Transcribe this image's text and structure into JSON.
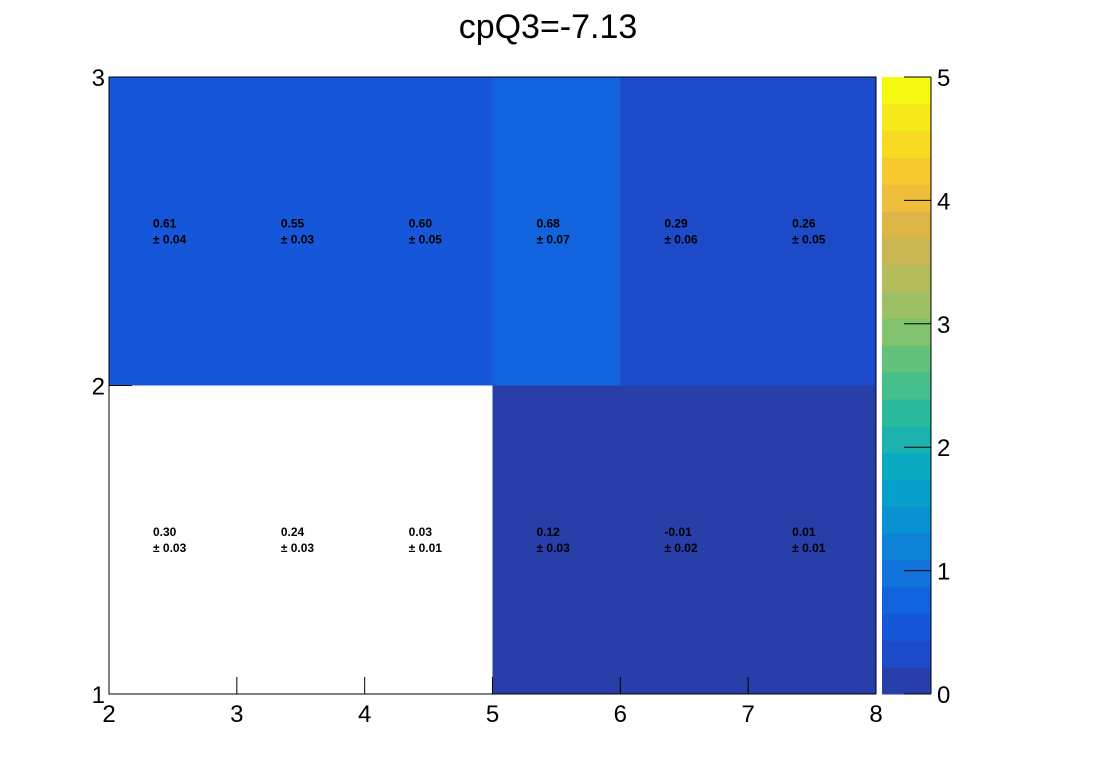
{
  "chart_data": {
    "type": "heatmap",
    "title": "cpQ3=-7.13",
    "xlabel": "",
    "ylabel": "",
    "xlim": [
      2,
      8
    ],
    "ylim": [
      1,
      3
    ],
    "zlim": [
      0,
      5
    ],
    "x_ticks": [
      "2",
      "3",
      "4",
      "5",
      "6",
      "7",
      "8"
    ],
    "y_ticks": [
      "1",
      "2",
      "3"
    ],
    "z_ticks": [
      "0",
      "1",
      "2",
      "3",
      "4",
      "5"
    ],
    "x_edges": [
      2,
      3,
      4,
      5,
      6,
      7,
      8
    ],
    "y_edges": [
      1,
      2,
      3
    ],
    "cells": [
      {
        "x": 2.5,
        "y": 2.5,
        "value": 0.61,
        "label": "0.61",
        "error": "± 0.04"
      },
      {
        "x": 3.5,
        "y": 2.5,
        "value": 0.55,
        "label": "0.55",
        "error": "± 0.03"
      },
      {
        "x": 4.5,
        "y": 2.5,
        "value": 0.6,
        "label": "0.60",
        "error": "± 0.05"
      },
      {
        "x": 5.5,
        "y": 2.5,
        "value": 0.68,
        "label": "0.68",
        "error": "± 0.07"
      },
      {
        "x": 6.5,
        "y": 2.5,
        "value": 0.29,
        "label": "0.29",
        "error": "± 0.06"
      },
      {
        "x": 7.5,
        "y": 2.5,
        "value": 0.26,
        "label": "0.26",
        "error": "± 0.05"
      },
      {
        "x": 2.5,
        "y": 1.5,
        "value": 0.3,
        "label": "0.30",
        "error": "± 0.03",
        "color": "#ffffff"
      },
      {
        "x": 3.5,
        "y": 1.5,
        "value": 0.24,
        "label": "0.24",
        "error": "± 0.03",
        "color": "#ffffff"
      },
      {
        "x": 4.5,
        "y": 1.5,
        "value": 0.03,
        "label": "0.03",
        "error": "± 0.01",
        "color": "#ffffff"
      },
      {
        "x": 5.5,
        "y": 1.5,
        "value": 0.12,
        "label": "0.12",
        "error": "± 0.03"
      },
      {
        "x": 6.5,
        "y": 1.5,
        "value": -0.01,
        "label": "-0.01",
        "error": "± 0.02"
      },
      {
        "x": 7.5,
        "y": 1.5,
        "value": 0.01,
        "label": "0.01",
        "error": "± 0.01"
      }
    ],
    "palette": [
      "#283ea9",
      "#1c4ac8",
      "#1657d9",
      "#1164de",
      "#1074db",
      "#0d82d6",
      "#0a91d2",
      "#06a0cb",
      "#0aabc0",
      "#1cb3ae",
      "#2cba9d",
      "#45bf8b",
      "#62c27b",
      "#80c26e",
      "#9cc063",
      "#b4bc5b",
      "#c9b652",
      "#ddb547",
      "#efbf3b",
      "#f8c92e",
      "#f8da23",
      "#f6e91c",
      "#f5f90f"
    ],
    "colorbar": true
  }
}
